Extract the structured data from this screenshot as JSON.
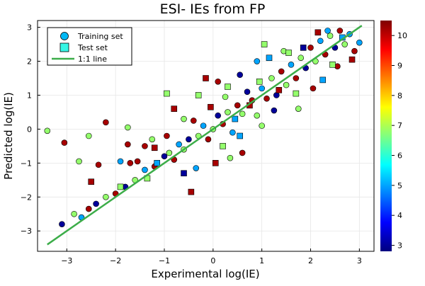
{
  "chart_data": {
    "type": "scatter",
    "title": "ESI- IEs from FP",
    "xlabel": "Experimental log(IE)",
    "ylabel": "Predicted log(IE)",
    "xlim": [
      -3.6,
      3.3
    ],
    "ylim": [
      -3.6,
      3.2
    ],
    "x_ticks": [
      -3,
      -2,
      -1,
      0,
      1,
      2,
      3
    ],
    "y_ticks": [
      -3,
      -2,
      -1,
      0,
      1,
      2,
      3
    ],
    "grid": true,
    "legend_position": "top-left",
    "colorbar": {
      "label": "",
      "range": [
        2.8,
        10.5
      ],
      "ticks": [
        3,
        4,
        5,
        6,
        7,
        8,
        9,
        10
      ],
      "colormap": "jet",
      "colors": [
        "#00007f",
        "#0000ff",
        "#0080ff",
        "#00ffff",
        "#80ff80",
        "#ffff00",
        "#ff8000",
        "#ff0000",
        "#7f0000"
      ]
    },
    "series": [
      {
        "name": "Training set",
        "marker": "circle",
        "points": [
          {
            "x": -3.4,
            "y": -0.05,
            "c": 6.8
          },
          {
            "x": -3.05,
            "y": -0.4,
            "c": 10.2
          },
          {
            "x": -2.75,
            "y": -0.95,
            "c": 6.8
          },
          {
            "x": -2.55,
            "y": -0.2,
            "c": 6.8
          },
          {
            "x": -2.35,
            "y": -1.05,
            "c": 10.2
          },
          {
            "x": -2.2,
            "y": 0.2,
            "c": 10.2
          },
          {
            "x": -1.9,
            "y": -0.95,
            "c": 5.0
          },
          {
            "x": -1.75,
            "y": -0.45,
            "c": 10.2
          },
          {
            "x": -1.75,
            "y": 0.05,
            "c": 6.8
          },
          {
            "x": -1.7,
            "y": -1.0,
            "c": 10.2
          },
          {
            "x": -1.55,
            "y": -0.95,
            "c": 10.2
          },
          {
            "x": -1.4,
            "y": -0.5,
            "c": 10.2
          },
          {
            "x": -1.25,
            "y": -0.3,
            "c": 6.8
          },
          {
            "x": -3.1,
            "y": -2.8,
            "c": 3.0
          },
          {
            "x": -2.85,
            "y": -2.5,
            "c": 6.8
          },
          {
            "x": -2.7,
            "y": -2.6,
            "c": 5.0
          },
          {
            "x": -2.55,
            "y": -2.35,
            "c": 10.2
          },
          {
            "x": -2.4,
            "y": -2.2,
            "c": 3.0
          },
          {
            "x": -2.2,
            "y": -2.0,
            "c": 6.8
          },
          {
            "x": -2.0,
            "y": -1.9,
            "c": 10.2
          },
          {
            "x": -1.8,
            "y": -1.7,
            "c": 3.0
          },
          {
            "x": -1.6,
            "y": -1.5,
            "c": 6.8
          },
          {
            "x": -1.4,
            "y": -1.2,
            "c": 5.0
          },
          {
            "x": -1.2,
            "y": -1.1,
            "c": 10.2
          },
          {
            "x": -1.0,
            "y": -0.8,
            "c": 3.0
          },
          {
            "x": -0.9,
            "y": -0.7,
            "c": 6.8
          },
          {
            "x": -0.8,
            "y": -0.9,
            "c": 10.2
          },
          {
            "x": -0.7,
            "y": -0.45,
            "c": 5.0
          },
          {
            "x": -0.6,
            "y": -0.6,
            "c": 6.8
          },
          {
            "x": -0.5,
            "y": -0.3,
            "c": 3.0
          },
          {
            "x": -0.4,
            "y": 0.25,
            "c": 10.2
          },
          {
            "x": -0.3,
            "y": -0.2,
            "c": 6.8
          },
          {
            "x": -0.2,
            "y": 0.1,
            "c": 5.0
          },
          {
            "x": -0.1,
            "y": -0.3,
            "c": 10.2
          },
          {
            "x": 0.0,
            "y": 0.0,
            "c": 6.8
          },
          {
            "x": 0.1,
            "y": 0.4,
            "c": 3.0
          },
          {
            "x": 0.2,
            "y": 0.15,
            "c": 10.2
          },
          {
            "x": 0.3,
            "y": 0.5,
            "c": 6.8
          },
          {
            "x": 0.4,
            "y": -0.1,
            "c": 5.0
          },
          {
            "x": 0.5,
            "y": 0.7,
            "c": 10.2
          },
          {
            "x": 0.6,
            "y": 0.45,
            "c": 6.8
          },
          {
            "x": 0.7,
            "y": 1.1,
            "c": 3.0
          },
          {
            "x": 0.8,
            "y": 0.85,
            "c": 10.2
          },
          {
            "x": 0.9,
            "y": 0.4,
            "c": 6.8
          },
          {
            "x": 1.0,
            "y": 1.2,
            "c": 5.0
          },
          {
            "x": 1.1,
            "y": 0.9,
            "c": 10.2
          },
          {
            "x": 1.2,
            "y": 1.5,
            "c": 6.8
          },
          {
            "x": 1.3,
            "y": 1.0,
            "c": 3.0
          },
          {
            "x": 1.4,
            "y": 1.7,
            "c": 10.2
          },
          {
            "x": 1.5,
            "y": 1.3,
            "c": 6.8
          },
          {
            "x": 1.6,
            "y": 1.9,
            "c": 5.0
          },
          {
            "x": 1.7,
            "y": 1.5,
            "c": 10.2
          },
          {
            "x": 1.8,
            "y": 2.1,
            "c": 6.8
          },
          {
            "x": 1.9,
            "y": 1.8,
            "c": 3.0
          },
          {
            "x": 2.0,
            "y": 2.4,
            "c": 10.2
          },
          {
            "x": 2.1,
            "y": 2.0,
            "c": 6.8
          },
          {
            "x": 2.2,
            "y": 2.6,
            "c": 5.0
          },
          {
            "x": 2.3,
            "y": 2.2,
            "c": 10.2
          },
          {
            "x": 2.4,
            "y": 2.75,
            "c": 6.8
          },
          {
            "x": 2.5,
            "y": 2.4,
            "c": 3.0
          },
          {
            "x": 2.6,
            "y": 2.9,
            "c": 10.2
          },
          {
            "x": 2.7,
            "y": 2.5,
            "c": 6.8
          },
          {
            "x": 2.8,
            "y": 2.8,
            "c": 5.0
          },
          {
            "x": 2.9,
            "y": 2.3,
            "c": 10.2
          },
          {
            "x": 3.0,
            "y": 2.55,
            "c": 5.0
          },
          {
            "x": 0.35,
            "y": -0.85,
            "c": 6.8
          },
          {
            "x": 0.6,
            "y": -0.7,
            "c": 10.2
          },
          {
            "x": -0.35,
            "y": -1.15,
            "c": 5.0
          },
          {
            "x": 1.0,
            "y": 0.1,
            "c": 6.8
          },
          {
            "x": 0.55,
            "y": 1.6,
            "c": 3.0
          },
          {
            "x": 0.1,
            "y": 1.4,
            "c": 10.2
          },
          {
            "x": 1.45,
            "y": 2.3,
            "c": 6.8
          },
          {
            "x": 2.05,
            "y": 1.2,
            "c": 10.2
          },
          {
            "x": 1.75,
            "y": 0.6,
            "c": 6.8
          },
          {
            "x": 0.9,
            "y": 2.0,
            "c": 5.0
          },
          {
            "x": -0.6,
            "y": 0.3,
            "c": 6.8
          },
          {
            "x": -0.95,
            "y": -0.2,
            "c": 10.2
          },
          {
            "x": 0.25,
            "y": 0.95,
            "c": 6.8
          },
          {
            "x": 1.25,
            "y": 0.55,
            "c": 3.0
          },
          {
            "x": 2.55,
            "y": 1.85,
            "c": 10.2
          },
          {
            "x": 2.35,
            "y": 2.9,
            "c": 5.0
          }
        ]
      },
      {
        "name": "Test set",
        "marker": "square",
        "points": [
          {
            "x": -2.5,
            "y": -1.55,
            "c": 10.2
          },
          {
            "x": -1.35,
            "y": -1.45,
            "c": 6.8
          },
          {
            "x": -1.2,
            "y": -0.55,
            "c": 10.2
          },
          {
            "x": -0.95,
            "y": 1.05,
            "c": 6.8
          },
          {
            "x": -0.8,
            "y": 0.6,
            "c": 10.2
          },
          {
            "x": -0.3,
            "y": 1.0,
            "c": 6.8
          },
          {
            "x": -0.6,
            "y": -1.3,
            "c": 3.0
          },
          {
            "x": -1.15,
            "y": -1.0,
            "c": 5.0
          },
          {
            "x": -0.05,
            "y": 0.65,
            "c": 10.2
          },
          {
            "x": 0.3,
            "y": 1.25,
            "c": 6.8
          },
          {
            "x": 0.45,
            "y": 0.3,
            "c": 5.0
          },
          {
            "x": 0.75,
            "y": 0.7,
            "c": 10.2
          },
          {
            "x": 0.95,
            "y": 1.4,
            "c": 6.8
          },
          {
            "x": 1.15,
            "y": 2.1,
            "c": 5.0
          },
          {
            "x": 1.35,
            "y": 1.15,
            "c": 10.2
          },
          {
            "x": 1.55,
            "y": 2.25,
            "c": 6.8
          },
          {
            "x": 1.85,
            "y": 2.4,
            "c": 3.0
          },
          {
            "x": 2.15,
            "y": 2.85,
            "c": 10.2
          },
          {
            "x": 2.45,
            "y": 1.9,
            "c": 6.8
          },
          {
            "x": 2.65,
            "y": 2.7,
            "c": 5.0
          },
          {
            "x": 2.85,
            "y": 2.05,
            "c": 10.2
          },
          {
            "x": 0.2,
            "y": -0.5,
            "c": 6.8
          },
          {
            "x": -0.45,
            "y": -1.85,
            "c": 10.2
          },
          {
            "x": 0.55,
            "y": -0.2,
            "c": 5.0
          },
          {
            "x": -1.9,
            "y": -1.7,
            "c": 6.8
          },
          {
            "x": -0.15,
            "y": 1.5,
            "c": 10.2
          },
          {
            "x": 1.7,
            "y": 1.05,
            "c": 6.8
          },
          {
            "x": 2.25,
            "y": 1.45,
            "c": 5.0
          },
          {
            "x": 0.05,
            "y": -1.0,
            "c": 10.2
          },
          {
            "x": 1.05,
            "y": 2.5,
            "c": 6.8
          }
        ]
      },
      {
        "name": "1:1 line",
        "marker": "line",
        "color": "#3cad49",
        "points": [
          {
            "x": -3.4,
            "y": -3.4
          },
          {
            "x": 3.05,
            "y": 3.05
          }
        ]
      }
    ]
  }
}
